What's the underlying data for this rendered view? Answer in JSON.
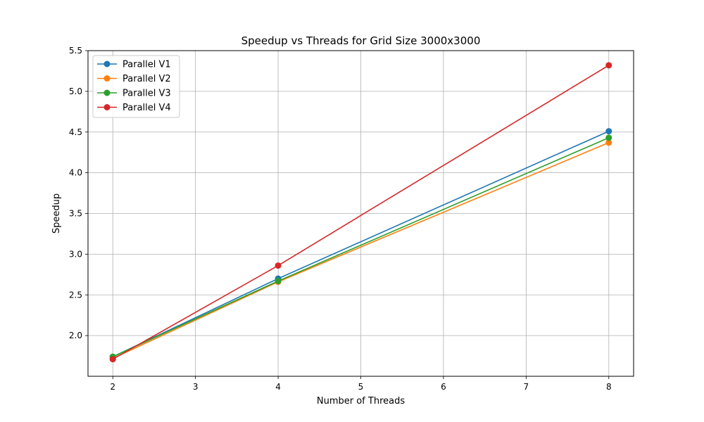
{
  "chart_data": {
    "type": "line",
    "title": "Speedup vs Threads for Grid Size 3000x3000",
    "xlabel": "Number of Threads",
    "ylabel": "Speedup",
    "x": [
      2,
      4,
      8
    ],
    "xlim": [
      1.7,
      8.3
    ],
    "ylim": [
      1.5,
      5.5
    ],
    "xticks": [
      "2",
      "3",
      "4",
      "5",
      "6",
      "7",
      "8"
    ],
    "yticks": [
      "2.0",
      "2.5",
      "3.0",
      "3.5",
      "4.0",
      "4.5",
      "5.0",
      "5.5"
    ],
    "grid": true,
    "legend_position": "top-left",
    "series": [
      {
        "name": "Parallel V1",
        "color": "#1f77b4",
        "values": [
          1.74,
          2.7,
          4.51
        ]
      },
      {
        "name": "Parallel V2",
        "color": "#ff7f0e",
        "values": [
          1.72,
          2.66,
          4.37
        ]
      },
      {
        "name": "Parallel V3",
        "color": "#2ca02c",
        "values": [
          1.74,
          2.67,
          4.43
        ]
      },
      {
        "name": "Parallel V4",
        "color": "#d62728",
        "values": [
          1.71,
          2.86,
          5.32
        ]
      }
    ]
  }
}
